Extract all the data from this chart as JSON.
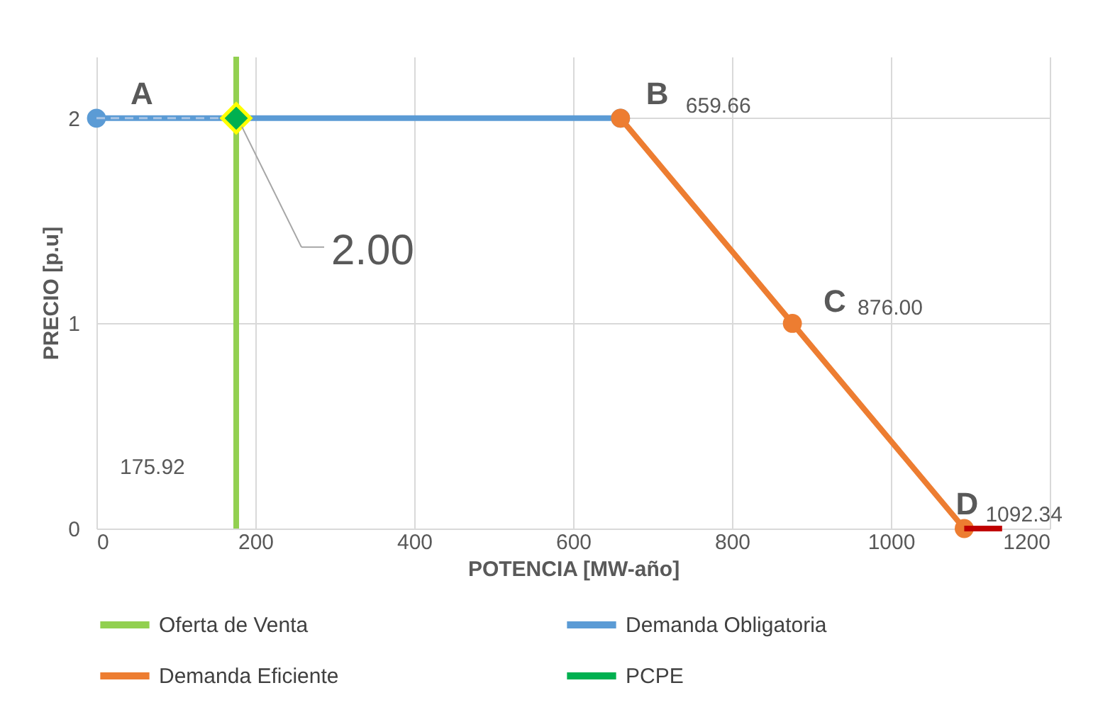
{
  "chart_data": {
    "type": "line",
    "xlabel": "POTENCIA [MW-año]",
    "ylabel": "PRECIO [p.u]",
    "xlim": [
      0,
      1200
    ],
    "xticks": [
      0,
      200,
      400,
      600,
      800,
      1000,
      1200
    ],
    "ylim": [
      0,
      2.3
    ],
    "yticks": [
      0,
      1,
      2
    ],
    "grid": true,
    "legend": "bottom",
    "series": [
      {
        "name": "Oferta de Venta",
        "color": "#92d050",
        "x": [
          175.92,
          175.92
        ],
        "values": [
          0,
          2.3
        ],
        "marker": "none",
        "line_style": "solid"
      },
      {
        "name": "Demanda Obligatoria",
        "color": "#5b9bd5",
        "x": [
          0,
          659.66
        ],
        "values": [
          2,
          2
        ],
        "marker": "circle",
        "line_style": "solid"
      },
      {
        "name": "Demanda Eficiente",
        "color": "#ed7d31",
        "x": [
          659.66,
          876,
          1092.34
        ],
        "values": [
          2,
          1,
          0
        ],
        "marker": "circle",
        "line_style": "solid"
      },
      {
        "color": "#a9c4e4",
        "x": [
          0,
          175.92
        ],
        "values": [
          2,
          2
        ],
        "marker": "none",
        "line_style": "dashed"
      },
      {
        "name": "PCPE",
        "type": "scatter",
        "color": "#00b050",
        "x": [
          175.92
        ],
        "values": [
          2
        ],
        "marker": "diamond"
      },
      {
        "color": "#c00000",
        "x": [
          1092.34,
          1140
        ],
        "values": [
          0,
          0
        ],
        "marker": "none",
        "line_style": "solid"
      }
    ],
    "annotations": [
      {
        "text": "A",
        "x": 0,
        "y": 2
      },
      {
        "text": "B",
        "x": 659.66,
        "y": 2
      },
      "659.66",
      {
        "text": "C",
        "x": 876,
        "y": 1
      },
      "876.00",
      {
        "text": "D",
        "x": 1092.34,
        "y": 0
      },
      "1092.34",
      {
        "text": "175.92",
        "x": 175.92,
        "y": 0.3
      },
      {
        "text": "2.00",
        "x": 175.92,
        "y": 2
      }
    ]
  }
}
